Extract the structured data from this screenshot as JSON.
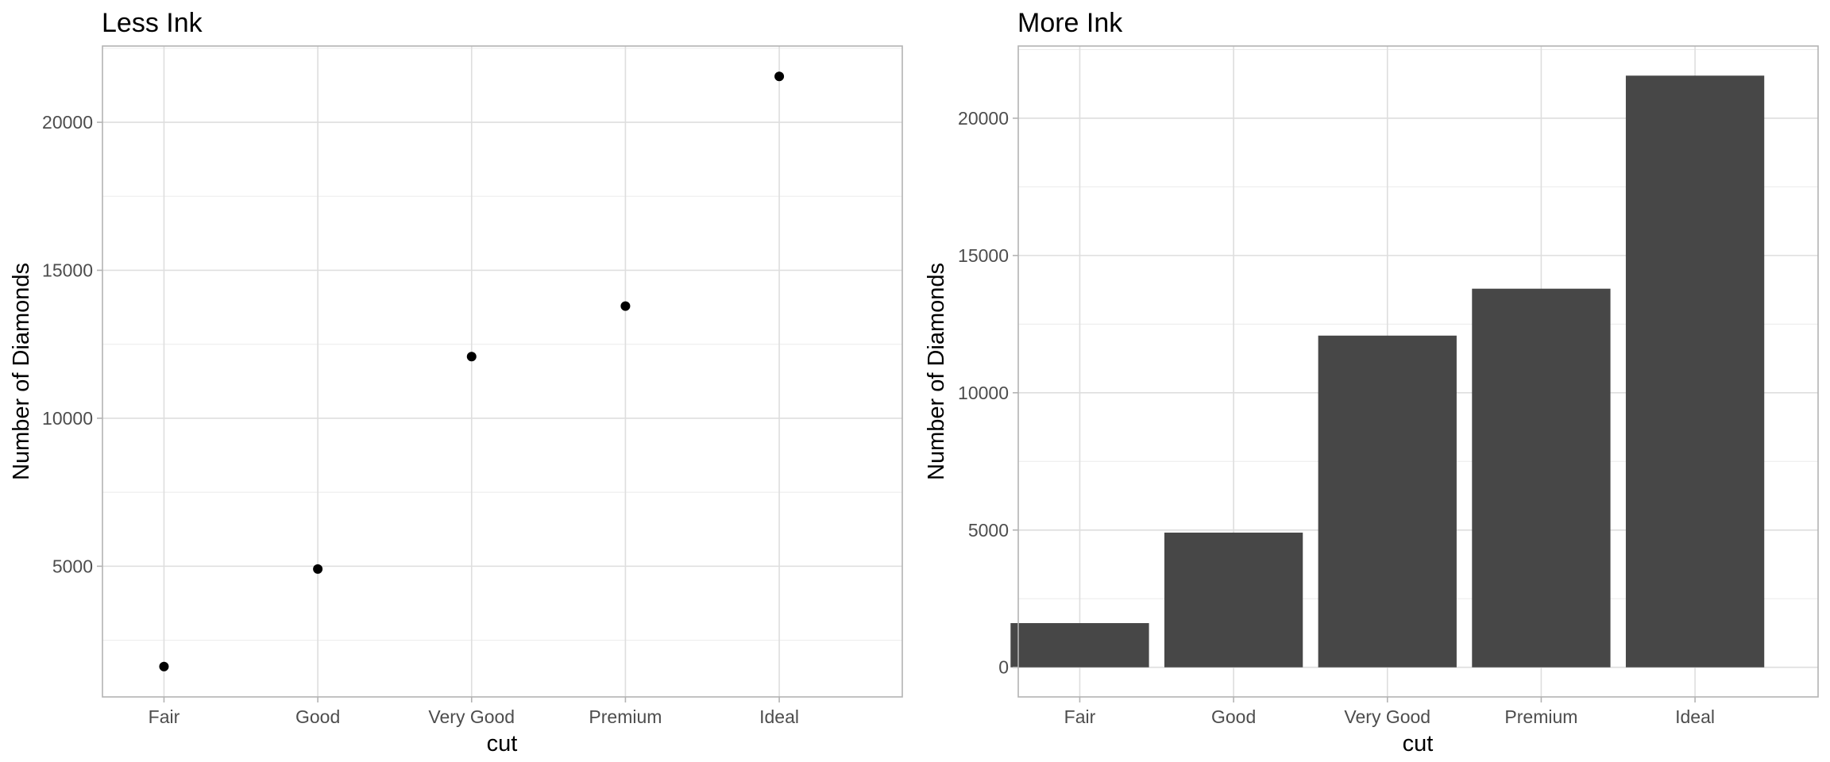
{
  "chart_data": [
    {
      "type": "scatter",
      "title": "Less Ink",
      "xlabel": "cut",
      "ylabel": "Number of Diamonds",
      "categories": [
        "Fair",
        "Good",
        "Very Good",
        "Premium",
        "Ideal"
      ],
      "values": [
        1610,
        4906,
        12082,
        13791,
        21551
      ],
      "ylim": [
        585,
        22576
      ],
      "yticks": [
        5000,
        10000,
        15000,
        20000
      ],
      "ytick_labels": [
        "5000",
        "10000",
        "15000",
        "20000"
      ],
      "grid": true,
      "marker_color": "#000000"
    },
    {
      "type": "bar",
      "title": "More Ink",
      "xlabel": "cut",
      "ylabel": "Number of Diamonds",
      "categories": [
        "Fair",
        "Good",
        "Very Good",
        "Premium",
        "Ideal"
      ],
      "values": [
        1610,
        4906,
        12082,
        13791,
        21551
      ],
      "ylim": [
        -1078,
        22629
      ],
      "yticks": [
        0,
        5000,
        10000,
        15000,
        20000
      ],
      "ytick_labels": [
        "0",
        "5000",
        "10000",
        "15000",
        "20000"
      ],
      "grid": true,
      "bar_color": "#474747"
    }
  ]
}
